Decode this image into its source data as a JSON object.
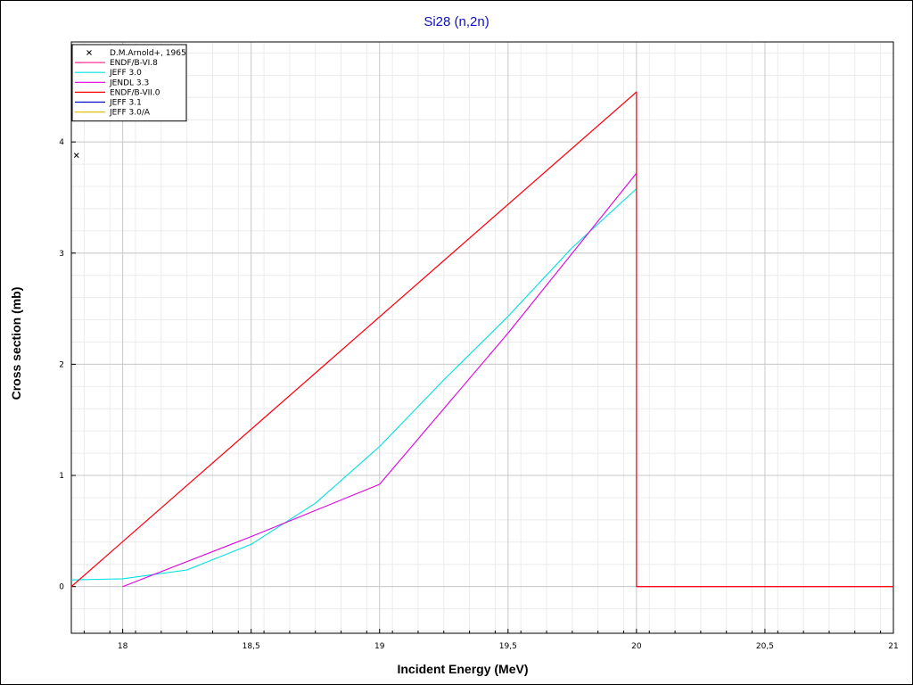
{
  "chart_data": {
    "type": "line",
    "title": "Si28 (n,2n)",
    "xlabel": "Incident Energy (MeV)",
    "ylabel": "Cross section (mb)",
    "xlim": [
      17.8,
      21
    ],
    "ylim": [
      -0.42,
      4.9
    ],
    "x_ticks": [
      18,
      18.5,
      19,
      19.5,
      20,
      20.5,
      21
    ],
    "x_tick_labels": [
      "18",
      "18,5",
      "19",
      "19,5",
      "20",
      "20,5",
      "21"
    ],
    "y_ticks": [
      0,
      1,
      2,
      3,
      4
    ],
    "y_tick_labels": [
      "0",
      "1",
      "2",
      "3",
      "4"
    ],
    "grid": true,
    "legend_position": "top-left",
    "series": [
      {
        "name": "D.M.Arnold+, 1965",
        "kind": "marker",
        "color": "#000000",
        "points": [
          [
            17.82,
            3.88
          ]
        ]
      },
      {
        "name": "ENDF/B-VI.8",
        "kind": "line",
        "color": "#ff3399",
        "points": [
          [
            17.8,
            0
          ],
          [
            20.0,
            4.45
          ],
          [
            20.0,
            0
          ],
          [
            21.0,
            0
          ]
        ]
      },
      {
        "name": "JEFF 3.0",
        "kind": "line",
        "color": "#00e0e0",
        "points": [
          [
            17.8,
            0.06
          ],
          [
            18.0,
            0.07
          ],
          [
            18.25,
            0.15
          ],
          [
            18.5,
            0.38
          ],
          [
            18.75,
            0.75
          ],
          [
            19.0,
            1.26
          ],
          [
            19.25,
            1.86
          ],
          [
            19.5,
            2.43
          ],
          [
            19.75,
            3.05
          ],
          [
            20.0,
            3.58
          ]
        ]
      },
      {
        "name": "JENDL 3.3",
        "kind": "line",
        "color": "#dd00dd",
        "points": [
          [
            18.0,
            0
          ],
          [
            18.5,
            0.45
          ],
          [
            19.0,
            0.92
          ],
          [
            19.5,
            2.28
          ],
          [
            20.0,
            3.72
          ]
        ]
      },
      {
        "name": "ENDF/B-VII.0",
        "kind": "line",
        "color": "#ff0000",
        "points": [
          [
            17.8,
            0
          ],
          [
            20.0,
            4.45
          ],
          [
            20.0,
            0
          ],
          [
            21.0,
            0
          ]
        ]
      },
      {
        "name": "JEFF 3.1",
        "kind": "line",
        "color": "#0000cc",
        "points": []
      },
      {
        "name": "JEFF 3.0/A",
        "kind": "line",
        "color": "#e0c000",
        "points": []
      }
    ]
  }
}
